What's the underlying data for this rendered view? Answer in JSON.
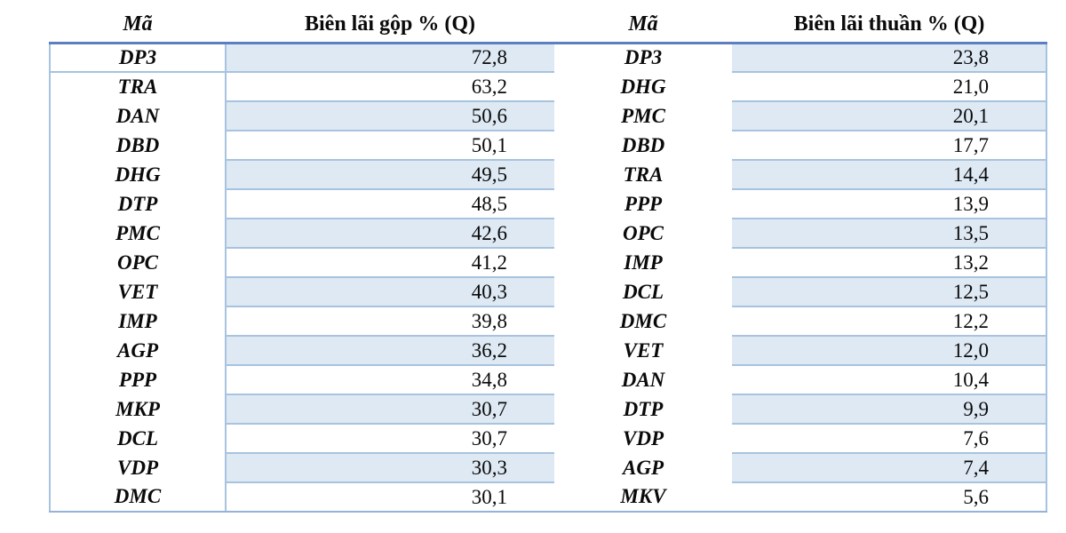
{
  "colors": {
    "row_fill": "#dee9f4",
    "border_light": "#a7c3df",
    "border_top": "#5b7fc0",
    "border_bottom": "#95b3d7",
    "text": "#0a0a0a",
    "background": "#ffffff"
  },
  "tables": [
    {
      "code_header": "Mã",
      "value_header": "Biên lãi gộp % (Q)",
      "rows": [
        {
          "code": "DP3",
          "value": "72,8"
        },
        {
          "code": "TRA",
          "value": "63,2"
        },
        {
          "code": "DAN",
          "value": "50,6"
        },
        {
          "code": "DBD",
          "value": "50,1"
        },
        {
          "code": "DHG",
          "value": "49,5"
        },
        {
          "code": "DTP",
          "value": "48,5"
        },
        {
          "code": "PMC",
          "value": "42,6"
        },
        {
          "code": "OPC",
          "value": "41,2"
        },
        {
          "code": "VET",
          "value": "40,3"
        },
        {
          "code": "IMP",
          "value": "39,8"
        },
        {
          "code": "AGP",
          "value": "36,2"
        },
        {
          "code": "PPP",
          "value": "34,8"
        },
        {
          "code": "MKP",
          "value": "30,7"
        },
        {
          "code": "DCL",
          "value": "30,7"
        },
        {
          "code": "VDP",
          "value": "30,3"
        },
        {
          "code": "DMC",
          "value": "30,1"
        }
      ]
    },
    {
      "code_header": "Mã",
      "value_header": "Biên lãi thuần % (Q)",
      "rows": [
        {
          "code": "DP3",
          "value": "23,8"
        },
        {
          "code": "DHG",
          "value": "21,0"
        },
        {
          "code": "PMC",
          "value": "20,1"
        },
        {
          "code": "DBD",
          "value": "17,7"
        },
        {
          "code": "TRA",
          "value": "14,4"
        },
        {
          "code": "PPP",
          "value": "13,9"
        },
        {
          "code": "OPC",
          "value": "13,5"
        },
        {
          "code": "IMP",
          "value": "13,2"
        },
        {
          "code": "DCL",
          "value": "12,5"
        },
        {
          "code": "DMC",
          "value": "12,2"
        },
        {
          "code": "VET",
          "value": "12,0"
        },
        {
          "code": "DAN",
          "value": "10,4"
        },
        {
          "code": "DTP",
          "value": "9,9"
        },
        {
          "code": "VDP",
          "value": "7,6"
        },
        {
          "code": "AGP",
          "value": "7,4"
        },
        {
          "code": "MKV",
          "value": "5,6"
        }
      ]
    }
  ],
  "chart_data": [
    {
      "type": "table",
      "title": "Biên lãi gộp % (Q)",
      "columns": [
        "Mã",
        "Biên lãi gộp % (Q)"
      ],
      "rows": [
        [
          "DP3",
          72.8
        ],
        [
          "TRA",
          63.2
        ],
        [
          "DAN",
          50.6
        ],
        [
          "DBD",
          50.1
        ],
        [
          "DHG",
          49.5
        ],
        [
          "DTP",
          48.5
        ],
        [
          "PMC",
          42.6
        ],
        [
          "OPC",
          41.2
        ],
        [
          "VET",
          40.3
        ],
        [
          "IMP",
          39.8
        ],
        [
          "AGP",
          36.2
        ],
        [
          "PPP",
          34.8
        ],
        [
          "MKP",
          30.7
        ],
        [
          "DCL",
          30.7
        ],
        [
          "VDP",
          30.3
        ],
        [
          "DMC",
          30.1
        ]
      ]
    },
    {
      "type": "table",
      "title": "Biên lãi thuần % (Q)",
      "columns": [
        "Mã",
        "Biên lãi thuần % (Q)"
      ],
      "rows": [
        [
          "DP3",
          23.8
        ],
        [
          "DHG",
          21.0
        ],
        [
          "PMC",
          20.1
        ],
        [
          "DBD",
          17.7
        ],
        [
          "TRA",
          14.4
        ],
        [
          "PPP",
          13.9
        ],
        [
          "OPC",
          13.5
        ],
        [
          "IMP",
          13.2
        ],
        [
          "DCL",
          12.5
        ],
        [
          "DMC",
          12.2
        ],
        [
          "VET",
          12.0
        ],
        [
          "DAN",
          10.4
        ],
        [
          "DTP",
          9.9
        ],
        [
          "VDP",
          7.6
        ],
        [
          "AGP",
          7.4
        ],
        [
          "MKV",
          5.6
        ]
      ]
    }
  ]
}
